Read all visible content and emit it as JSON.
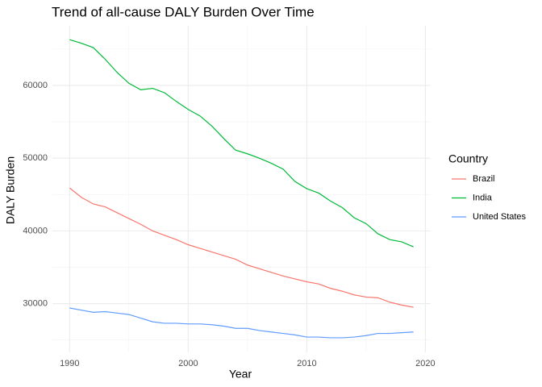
{
  "chart_data": {
    "type": "line",
    "title": "Trend of all-cause DALY Burden Over Time",
    "x_label": "Year",
    "y_label": "DALY Burden",
    "legend_title": "Country",
    "x": [
      1990,
      1991,
      1992,
      1993,
      1994,
      1995,
      1996,
      1997,
      1998,
      1999,
      2000,
      2001,
      2002,
      2003,
      2004,
      2005,
      2006,
      2007,
      2008,
      2009,
      2010,
      2011,
      2012,
      2013,
      2014,
      2015,
      2016,
      2017,
      2018,
      2019
    ],
    "series": [
      {
        "name": "Brazil",
        "color": "#F8766D",
        "values": [
          45900,
          44600,
          43700,
          43300,
          42500,
          41700,
          40900,
          40000,
          39400,
          38800,
          38100,
          37600,
          37100,
          36600,
          36100,
          35300,
          34800,
          34300,
          33800,
          33400,
          33000,
          32700,
          32100,
          31700,
          31200,
          30900,
          30800,
          30200,
          29800,
          29500
        ]
      },
      {
        "name": "India",
        "color": "#00BA38",
        "values": [
          66300,
          65800,
          65200,
          63600,
          61800,
          60300,
          59400,
          59600,
          59000,
          57800,
          56700,
          55800,
          54400,
          52700,
          51100,
          50600,
          50000,
          49300,
          48500,
          46800,
          45800,
          45200,
          44100,
          43200,
          41800,
          41000,
          39600,
          38800,
          38500,
          37800
        ]
      },
      {
        "name": "United States",
        "color": "#619CFF",
        "values": [
          29400,
          29100,
          28800,
          28900,
          28700,
          28500,
          28000,
          27500,
          27300,
          27300,
          27200,
          27200,
          27100,
          26900,
          26600,
          26600,
          26300,
          26100,
          25900,
          25700,
          25400,
          25400,
          25300,
          25300,
          25400,
          25600,
          25900,
          25900,
          26000,
          26100
        ]
      }
    ],
    "xlim": [
      1988.55,
      2020.45
    ],
    "xticks": [
      1990,
      2000,
      2010,
      2020
    ],
    "xminor": [
      1995,
      2005,
      2015
    ],
    "ylim": [
      23300,
      68200
    ],
    "yticks": [
      30000,
      40000,
      50000,
      60000
    ],
    "yminor": [
      25000,
      35000,
      45000,
      55000,
      65000
    ],
    "grid": true,
    "legend": "right"
  }
}
